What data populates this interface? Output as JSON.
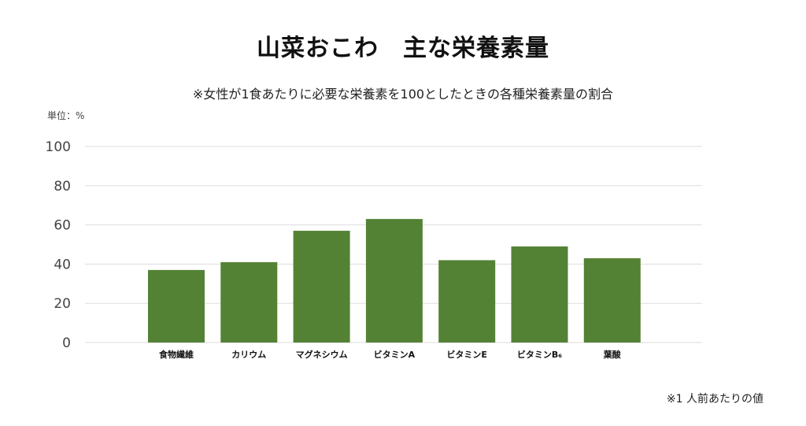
{
  "title": "山菜おこわ　主な栄養素量",
  "subtitle": "※女性が1食あたりに必要な栄養素を100としたときの各種栄養素量の割合",
  "unit_label": "単位：%",
  "footnote": "※1 人前あたりの値",
  "colors": {
    "bar": "#548235",
    "grid": "#dddddd"
  },
  "chart_data": {
    "type": "bar",
    "categories": [
      "食物繊維",
      "カリウム",
      "マグネシウム",
      "ビタミンA",
      "ビタミンE",
      "ビタミンB₆",
      "葉酸"
    ],
    "values": [
      37,
      41,
      57,
      63,
      42,
      49,
      43
    ],
    "ylim": [
      0,
      100
    ],
    "yticks": [
      0,
      20,
      40,
      60,
      80,
      100
    ],
    "grid": true,
    "legend": "none"
  }
}
